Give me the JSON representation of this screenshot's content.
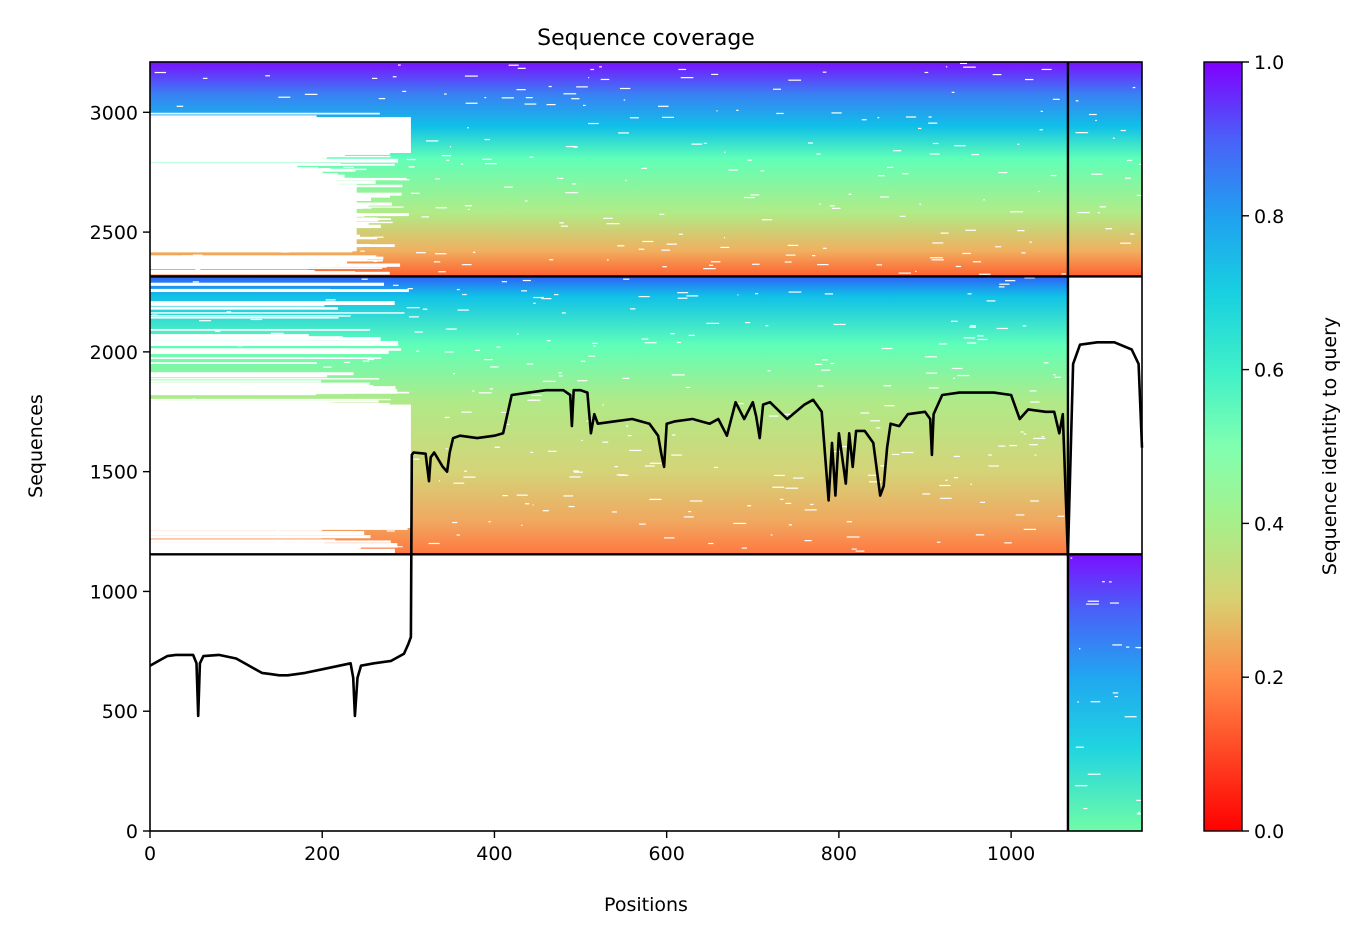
{
  "chart_data": {
    "type": "heatmap",
    "title": "Sequence coverage",
    "xlabel": "Positions",
    "ylabel": "Sequences",
    "xlim": [
      0,
      1152
    ],
    "ylim": [
      0,
      3210
    ],
    "xticks": [
      0,
      200,
      400,
      600,
      800,
      1000
    ],
    "yticks": [
      0,
      500,
      1000,
      1500,
      2000,
      2500,
      3000
    ],
    "colorbar": {
      "label": "Sequence identity to query",
      "colormap": "rainbow_r",
      "range": [
        0,
        1
      ],
      "ticks": [
        "0.0",
        "0.2",
        "0.4",
        "0.6",
        "0.8",
        "1.0"
      ]
    },
    "chain_boundary_x": 1066,
    "block_boundaries_y": [
      1155,
      2315
    ],
    "blocks": [
      {
        "name": "",
        "y_range": [
          0,
          1155
        ],
        "x_ranges": [
          [
            1066,
            1152
          ]
        ],
        "identity_range": [
          0.5,
          1.0
        ]
      },
      {
        "name": "",
        "y_range": [
          1155,
          2315
        ],
        "x_ranges": [
          [
            0,
            1066
          ]
        ],
        "identity_range": [
          0.2,
          1.0
        ]
      },
      {
        "name": "",
        "y_range": [
          2315,
          3210
        ],
        "x_ranges": [
          [
            0,
            1066
          ],
          [
            1066,
            1152
          ]
        ],
        "identity_range": [
          0.2,
          1.0
        ]
      }
    ],
    "coverage_line": {
      "x": [
        0,
        10,
        20,
        30,
        50,
        54,
        56,
        58,
        62,
        80,
        100,
        110,
        120,
        130,
        140,
        150,
        160,
        180,
        200,
        220,
        233,
        236,
        238,
        241,
        245,
        260,
        280,
        295,
        300,
        303,
        304,
        306,
        320,
        324,
        326,
        330,
        340,
        345,
        348,
        352,
        360,
        380,
        400,
        410,
        420,
        440,
        460,
        480,
        488,
        490,
        492,
        500,
        508,
        512,
        516,
        520,
        540,
        560,
        580,
        590,
        594,
        597,
        600,
        610,
        630,
        650,
        660,
        670,
        680,
        690,
        700,
        704,
        708,
        712,
        720,
        740,
        760,
        770,
        780,
        788,
        792,
        796,
        800,
        808,
        812,
        816,
        820,
        830,
        840,
        848,
        852,
        856,
        860,
        870,
        880,
        900,
        906,
        908,
        910,
        920,
        940,
        960,
        980,
        1000,
        1010,
        1020,
        1040,
        1050,
        1056,
        1060,
        1066,
        1072,
        1080,
        1100,
        1120,
        1140,
        1148,
        1152
      ],
      "y": [
        690,
        710,
        730,
        735,
        735,
        700,
        480,
        700,
        730,
        735,
        720,
        700,
        680,
        660,
        655,
        650,
        650,
        660,
        675,
        690,
        700,
        640,
        480,
        640,
        690,
        700,
        710,
        740,
        780,
        810,
        1570,
        1580,
        1575,
        1460,
        1560,
        1580,
        1520,
        1500,
        1580,
        1640,
        1650,
        1640,
        1650,
        1660,
        1820,
        1830,
        1840,
        1840,
        1820,
        1690,
        1840,
        1840,
        1830,
        1660,
        1740,
        1700,
        1710,
        1720,
        1700,
        1650,
        1570,
        1520,
        1700,
        1710,
        1720,
        1700,
        1720,
        1650,
        1790,
        1720,
        1790,
        1730,
        1640,
        1780,
        1790,
        1720,
        1780,
        1800,
        1750,
        1380,
        1620,
        1400,
        1660,
        1450,
        1660,
        1520,
        1670,
        1670,
        1620,
        1400,
        1440,
        1600,
        1700,
        1690,
        1740,
        1750,
        1720,
        1570,
        1740,
        1820,
        1830,
        1830,
        1830,
        1820,
        1720,
        1760,
        1750,
        1750,
        1660,
        1740,
        1150,
        1950,
        2030,
        2040,
        2040,
        2010,
        1950,
        1600
      ]
    }
  }
}
